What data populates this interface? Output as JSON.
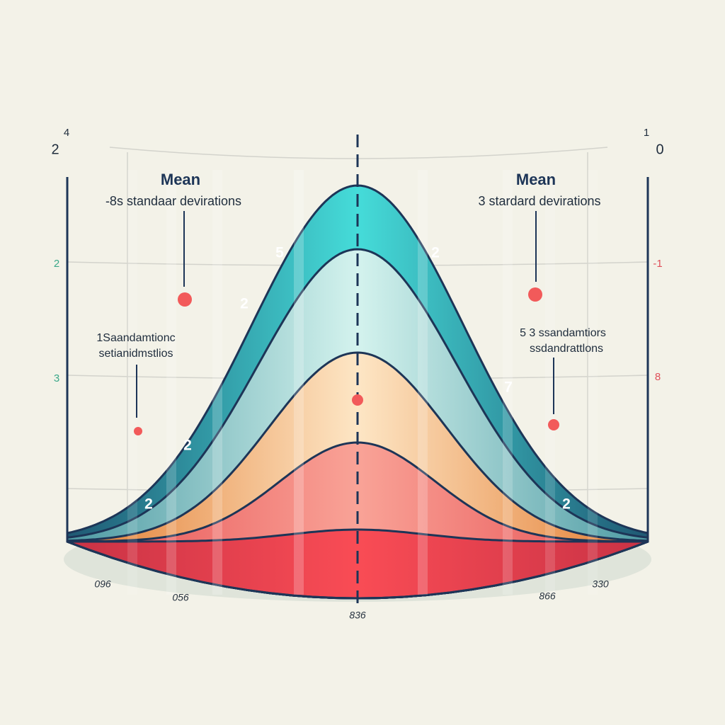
{
  "corner_labels": {
    "top_left": [
      "2",
      "4"
    ],
    "top_right": [
      "1",
      "0"
    ]
  },
  "axis_left": [
    "2",
    "3"
  ],
  "axis_right": [
    "-1",
    "8"
  ],
  "annotations": [
    {
      "title": "Mean",
      "text": "-8s standaar devirations"
    },
    {
      "title": "Mean",
      "text": "3 stardard devirations"
    },
    {
      "lines": [
        "1Saandamtionc",
        "setianidmstlios"
      ]
    },
    {
      "lines": [
        "5 3 ssandamtiors",
        "ssdandrattlons"
      ]
    }
  ],
  "curve_labels": [
    "5",
    "2",
    "2",
    "7",
    "2",
    "2",
    "2"
  ],
  "bottom_labels": [
    "096",
    "056",
    "836",
    "866",
    "330"
  ]
}
